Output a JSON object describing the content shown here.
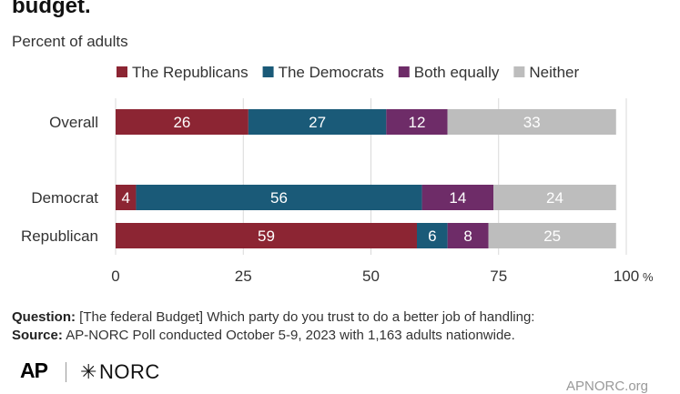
{
  "header": {
    "title": "budget.",
    "subtitle": "Percent of adults"
  },
  "footer": {
    "question_label": "Question:",
    "question_text": "[The federal Budget] Which party do you trust to do a better job of handling:",
    "source_label": "Source:",
    "source_text": "AP-NORC Poll conducted October 5-9, 2023 with 1,163 adults nationwide.",
    "logo_ap": "AP",
    "logo_norc": "NORC",
    "website": "APNORC.org"
  },
  "chart_data": {
    "type": "bar",
    "orientation": "horizontal",
    "stacked": true,
    "categories": [
      "Overall",
      "Democrat",
      "Republican"
    ],
    "series": [
      {
        "name": "The Republicans",
        "color": "#8c2533",
        "values": [
          26,
          4,
          59
        ]
      },
      {
        "name": "The Democrats",
        "color": "#1a5a78",
        "values": [
          27,
          56,
          6
        ]
      },
      {
        "name": "Both equally",
        "color": "#6e2c68",
        "values": [
          12,
          14,
          8
        ]
      },
      {
        "name": "Neither",
        "color": "#bdbdbd",
        "values": [
          33,
          24,
          25
        ]
      }
    ],
    "xlim": [
      0,
      100
    ],
    "xticks": [
      "0",
      "25",
      "50",
      "75",
      "100"
    ],
    "xtick_unit": "%",
    "legend_position": "top",
    "grid": "vertical",
    "grid_color": "#d9d9d9"
  }
}
